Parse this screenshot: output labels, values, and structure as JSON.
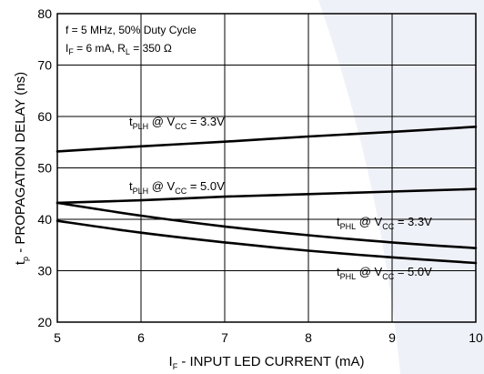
{
  "chart_data": {
    "type": "line",
    "xlabel": {
      "sym": "I",
      "sub": "F",
      "rest": " - INPUT LED CURRENT (mA)"
    },
    "ylabel": {
      "sym": "t",
      "sub": "p",
      "rest": " - PROPAGATION DELAY (ns)"
    },
    "xlim": [
      5,
      10
    ],
    "ylim": [
      20,
      80
    ],
    "xticks": [
      "5",
      "6",
      "7",
      "8",
      "9",
      "10"
    ],
    "yticks": [
      "20",
      "30",
      "40",
      "50",
      "60",
      "70",
      "80"
    ],
    "grid": true,
    "conditions_line1": "f = 5 MHz, 50% Duty Cycle",
    "conditions_line2": {
      "p1": "I",
      "s1": "F",
      "p2": " = 6 mA, R",
      "s2": "L",
      "p3": " = 350 Ω"
    },
    "series": [
      {
        "label": {
          "a": "t",
          "b": "PLH",
          "c": " @ V",
          "d": "CC",
          "e": " = 3.3V"
        },
        "x": [
          5,
          6,
          7,
          8,
          9,
          10
        ],
        "y": [
          53.2,
          54.2,
          55.1,
          56.1,
          57.0,
          58.0
        ]
      },
      {
        "label": {
          "a": "t",
          "b": "PLH",
          "c": " @ V",
          "d": "CC",
          "e": " = 5.0V"
        },
        "x": [
          5,
          6,
          7,
          8,
          9,
          10
        ],
        "y": [
          43.2,
          43.7,
          44.4,
          44.9,
          45.4,
          45.9
        ]
      },
      {
        "label": {
          "a": "t",
          "b": "PHL",
          "c": " @ V",
          "d": "CC",
          "e": " = 3.3V"
        },
        "x": [
          5,
          6,
          7,
          8,
          9,
          10
        ],
        "y": [
          43.2,
          40.7,
          38.6,
          36.9,
          35.5,
          34.4
        ]
      },
      {
        "label": {
          "a": "t",
          "b": "PHL",
          "c": " @ V",
          "d": "CC",
          "e": " = 5.0V"
        },
        "x": [
          5,
          6,
          7,
          8,
          9,
          10
        ],
        "y": [
          39.7,
          37.4,
          35.5,
          33.9,
          32.6,
          31.5
        ]
      }
    ]
  }
}
